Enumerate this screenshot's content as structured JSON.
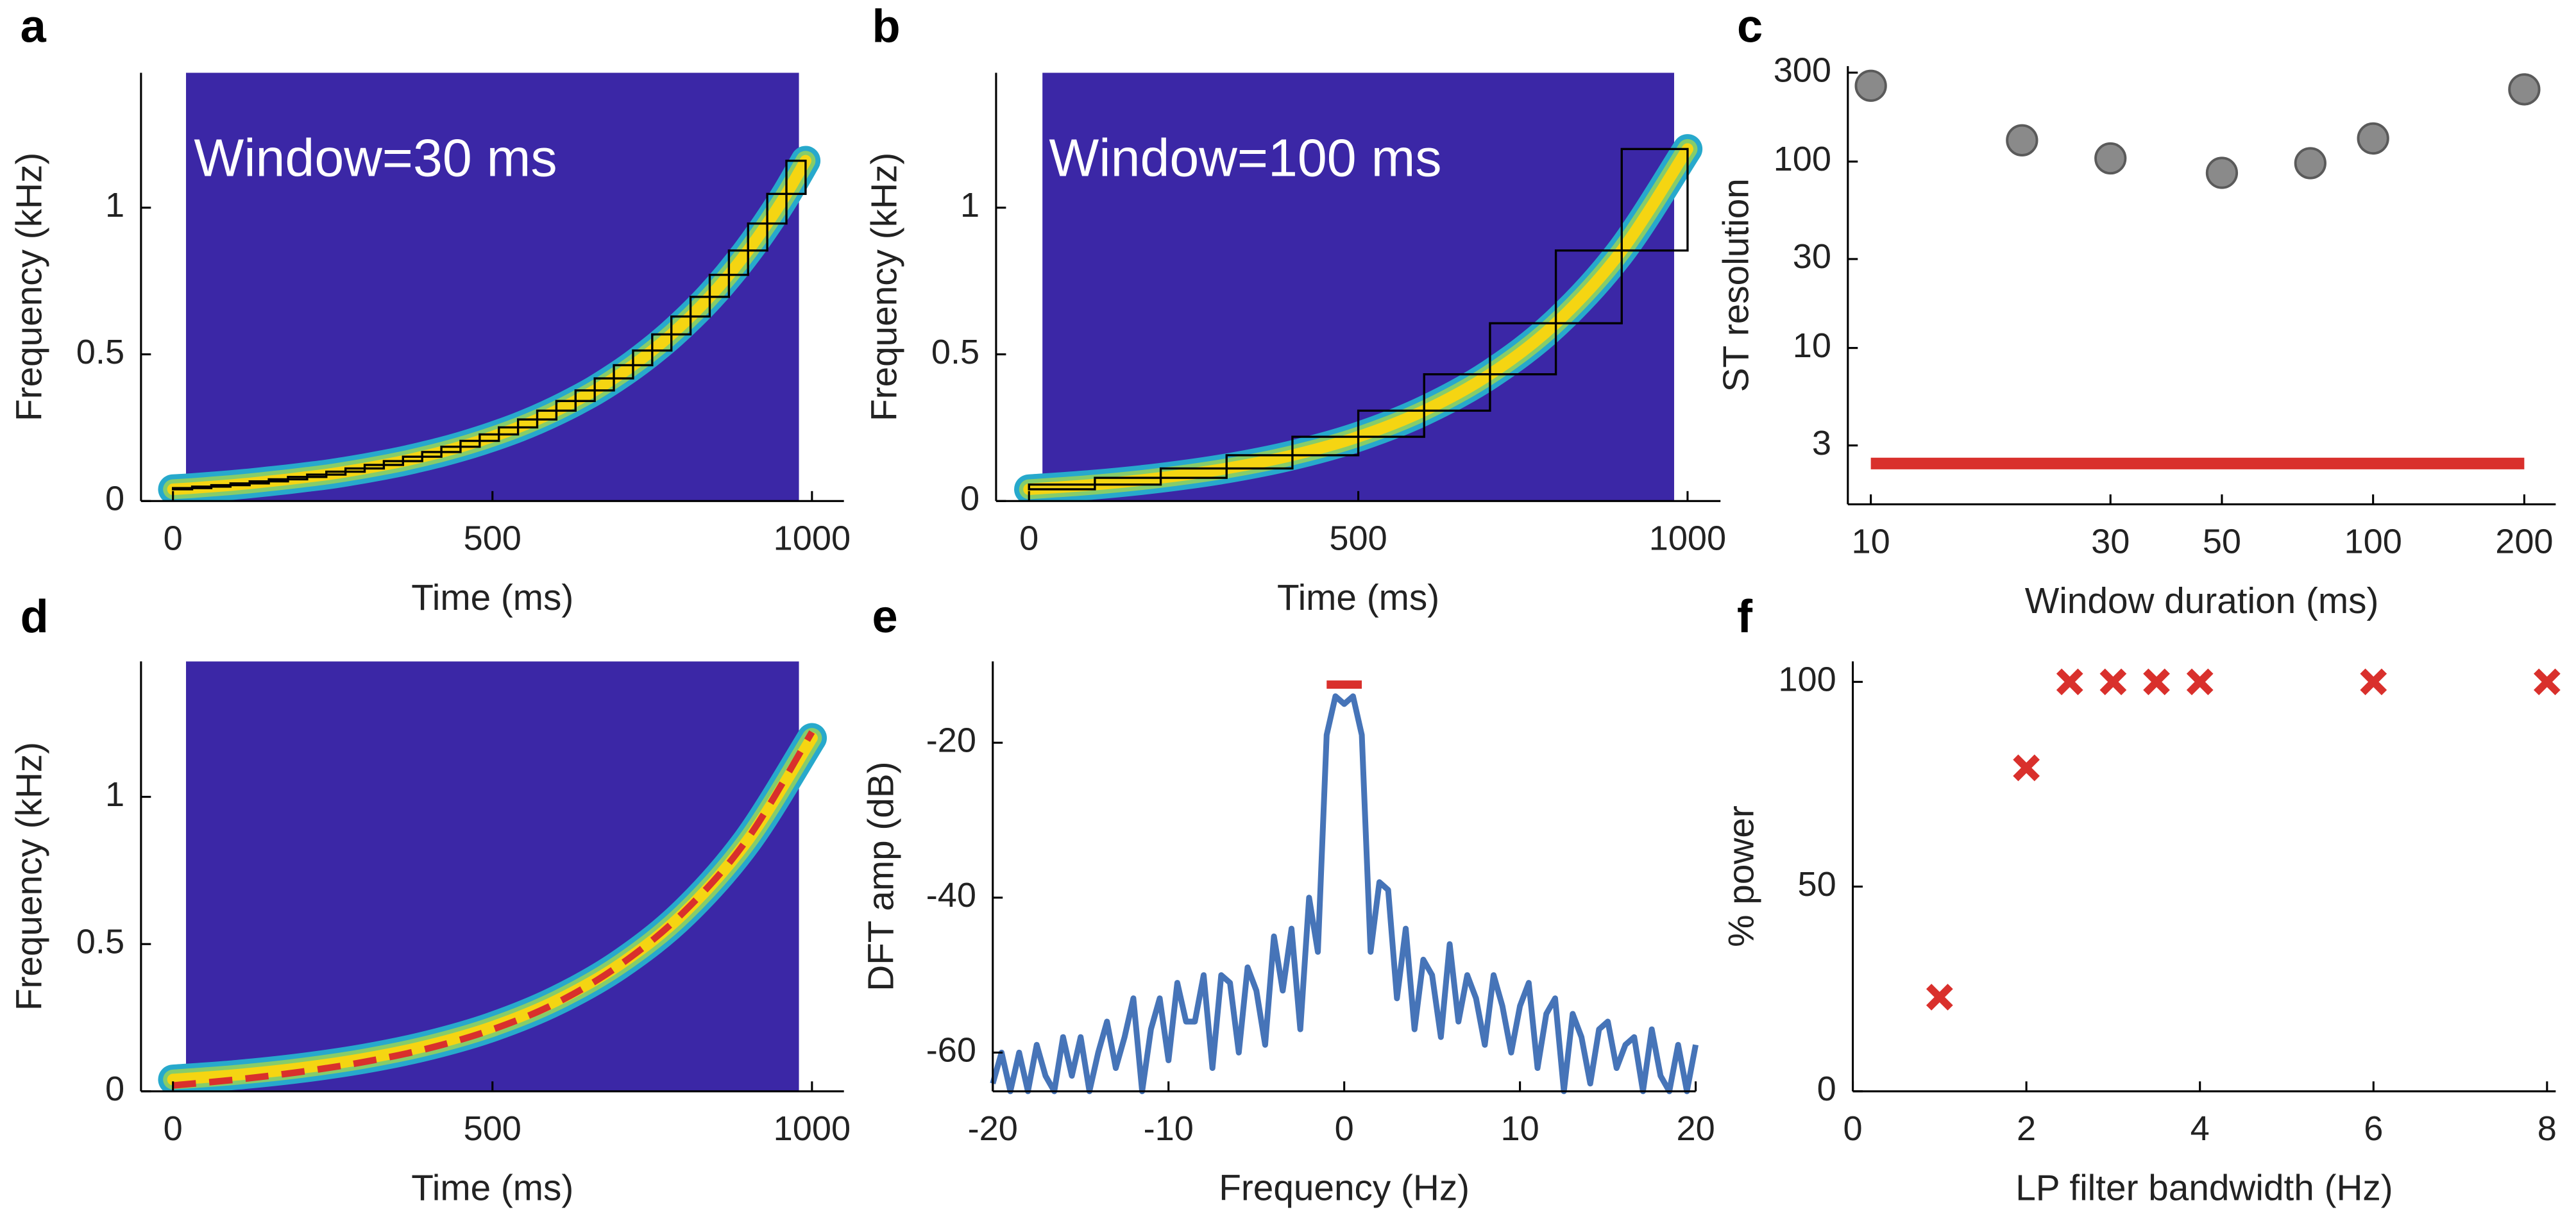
{
  "chart_data": [
    {
      "type": "spectrogram",
      "label": "a",
      "annotation": "Window=30 ms",
      "xlabel": "Time (ms)",
      "ylabel": "Frequency (kHz)",
      "xlim": [
        -50,
        1050
      ],
      "ylim": [
        0,
        1.46
      ],
      "xticks": [
        0,
        500,
        1000
      ],
      "yticks": [
        0,
        0.5,
        1
      ],
      "background": "#3b27a6",
      "series": [
        {
          "type": "band",
          "colors": [
            "#27a9cc",
            "#86cc6a",
            "#f5d512"
          ],
          "x": [
            0,
            30,
            60,
            90,
            120,
            150,
            180,
            210,
            240,
            270,
            300,
            330,
            360,
            390,
            420,
            450,
            480,
            510,
            540,
            570,
            600,
            630,
            660,
            690,
            720,
            750,
            780,
            810,
            840,
            870,
            900,
            930,
            960,
            990
          ],
          "values": [
            0.04,
            0.044,
            0.049,
            0.054,
            0.06,
            0.067,
            0.074,
            0.082,
            0.09,
            0.1,
            0.111,
            0.123,
            0.136,
            0.151,
            0.167,
            0.185,
            0.205,
            0.227,
            0.251,
            0.278,
            0.308,
            0.341,
            0.377,
            0.418,
            0.463,
            0.513,
            0.568,
            0.629,
            0.696,
            0.771,
            0.854,
            0.946,
            1.047,
            1.16
          ]
        },
        {
          "type": "boxes",
          "color": "#000000",
          "x": [
            0,
            30,
            60,
            90,
            120,
            150,
            180,
            210,
            240,
            270,
            300,
            330,
            360,
            390,
            420,
            450,
            480,
            510,
            540,
            570,
            600,
            630,
            660,
            690,
            720,
            750,
            780,
            810,
            840,
            870,
            900,
            930,
            960,
            990
          ],
          "values": [
            0.04,
            0.044,
            0.049,
            0.054,
            0.06,
            0.067,
            0.074,
            0.082,
            0.09,
            0.1,
            0.111,
            0.123,
            0.136,
            0.151,
            0.167,
            0.185,
            0.205,
            0.227,
            0.251,
            0.278,
            0.308,
            0.341,
            0.377,
            0.418,
            0.463,
            0.513,
            0.568,
            0.629,
            0.696,
            0.771,
            0.854,
            0.946,
            1.047,
            1.16
          ]
        }
      ]
    },
    {
      "type": "spectrogram",
      "label": "b",
      "annotation": "Window=100 ms",
      "xlabel": "Time (ms)",
      "ylabel": "Frequency (kHz)",
      "xlim": [
        -50,
        1050
      ],
      "ylim": [
        0,
        1.46
      ],
      "xticks": [
        0,
        500,
        1000
      ],
      "yticks": [
        0,
        0.5,
        1
      ],
      "background": "#3b27a6",
      "series": [
        {
          "type": "band",
          "colors": [
            "#27a9cc",
            "#86cc6a",
            "#f5d512"
          ],
          "x": [
            0,
            100,
            200,
            300,
            400,
            500,
            600,
            700,
            800,
            900,
            1000
          ],
          "values": [
            0.04,
            0.056,
            0.079,
            0.111,
            0.156,
            0.219,
            0.308,
            0.432,
            0.606,
            0.854,
            1.2
          ]
        },
        {
          "type": "boxes",
          "color": "#000000",
          "x": [
            0,
            100,
            200,
            300,
            400,
            500,
            600,
            700,
            800,
            900,
            1000
          ],
          "values": [
            0.04,
            0.056,
            0.079,
            0.111,
            0.156,
            0.219,
            0.308,
            0.432,
            0.606,
            0.854,
            1.2
          ]
        }
      ]
    },
    {
      "type": "xy",
      "label": "c",
      "xlabel": "Window duration (ms)",
      "ylabel": "ST resolution",
      "xlog": true,
      "ylog": true,
      "xlim": [
        9,
        231
      ],
      "ylim": [
        1.45,
        325
      ],
      "xticks": [
        10,
        30,
        50,
        100,
        200
      ],
      "yticks": [
        3,
        10,
        30,
        100,
        300
      ],
      "series": [
        {
          "type": "line",
          "color": "#d9302c",
          "width": 7,
          "x": [
            10,
            200
          ],
          "values": [
            2.4,
            2.4
          ]
        },
        {
          "type": "circle",
          "color": "#8a8a8a",
          "edge": "#5a5a5a",
          "x": [
            10,
            20,
            30,
            50,
            75,
            100,
            200
          ],
          "values": [
            255,
            130,
            104,
            87,
            98,
            133,
            244
          ]
        }
      ]
    },
    {
      "type": "spectrogram",
      "label": "d",
      "xlabel": "Time (ms)",
      "ylabel": "Frequency (kHz)",
      "xlim": [
        -50,
        1050
      ],
      "ylim": [
        0,
        1.46
      ],
      "xticks": [
        0,
        500,
        1000
      ],
      "yticks": [
        0,
        0.5,
        1
      ],
      "background": "#3b27a6",
      "series": [
        {
          "type": "band",
          "colors": [
            "#27a9cc",
            "#86cc6a",
            "#f5d512"
          ],
          "x": [
            0,
            100,
            200,
            300,
            400,
            500,
            600,
            700,
            800,
            900,
            1000
          ],
          "values": [
            0.04,
            0.056,
            0.079,
            0.111,
            0.156,
            0.219,
            0.308,
            0.432,
            0.606,
            0.854,
            1.2
          ]
        },
        {
          "type": "dashed",
          "color": "#d9302c",
          "x": [
            0,
            100,
            200,
            300,
            400,
            500,
            600,
            700,
            800,
            900,
            1000
          ],
          "values": [
            0.02,
            0.04,
            0.066,
            0.1,
            0.146,
            0.21,
            0.3,
            0.43,
            0.61,
            0.86,
            1.22
          ]
        }
      ]
    },
    {
      "type": "xy",
      "label": "e",
      "xlabel": "Frequency (Hz)",
      "ylabel": "DFT amp (dB)",
      "xlim": [
        -20,
        20
      ],
      "ylim": [
        -65,
        -9.5
      ],
      "xticks": [
        -20,
        -10,
        0,
        10,
        20
      ],
      "yticks": [
        -60,
        -40,
        -20
      ],
      "series": [
        {
          "type": "line",
          "color": "#4674b8",
          "width": 3.5,
          "x": [
            -20,
            -19.5,
            -19,
            -18.5,
            -18,
            -17.5,
            -17,
            -16.5,
            -16,
            -15.5,
            -15,
            -14.5,
            -14,
            -13.5,
            -13,
            -12.5,
            -12,
            -11.5,
            -11,
            -10.5,
            -10,
            -9.5,
            -9,
            -8.5,
            -8,
            -7.5,
            -7,
            -6.5,
            -6,
            -5.5,
            -5,
            -4.5,
            -4,
            -3.5,
            -3,
            -2.5,
            -2,
            -1.5,
            -1,
            -0.5,
            0,
            0.5,
            1,
            1.5,
            2,
            2.5,
            3,
            3.5,
            4,
            4.5,
            5,
            5.5,
            6,
            6.5,
            7,
            7.5,
            8,
            8.5,
            9,
            9.5,
            10,
            10.5,
            11,
            11.5,
            12,
            12.5,
            13,
            13.5,
            14,
            14.5,
            15,
            15.5,
            16,
            16.5,
            17,
            17.5,
            18,
            18.5,
            19,
            19.5,
            20
          ],
          "values": [
            -64,
            -60,
            -65,
            -60,
            -65,
            -59,
            -63,
            -65,
            -58,
            -63,
            -58,
            -65,
            -60,
            -56,
            -62,
            -58,
            -53,
            -65,
            -57,
            -53,
            -61,
            -51,
            -56,
            -56,
            -50,
            -62,
            -50,
            -51,
            -60,
            -49,
            -52,
            -59,
            -45,
            -52,
            -44,
            -57,
            -40,
            -47,
            -19,
            -14,
            -15,
            -14,
            -19,
            -47,
            -38,
            -39,
            -53,
            -44,
            -57,
            -48,
            -50,
            -58,
            -46,
            -56,
            -50,
            -53,
            -59,
            -50,
            -54,
            -60,
            -54,
            -51,
            -62,
            -55,
            -53,
            -65,
            -55,
            -58,
            -64,
            -57,
            -56,
            -62,
            -59,
            -58,
            -65,
            -57,
            -63,
            -65,
            -59,
            -65,
            -59
          ]
        },
        {
          "type": "line",
          "color": "#d9302c",
          "width": 5,
          "x": [
            -1,
            1
          ],
          "values": [
            -12.5,
            -12.5
          ]
        }
      ]
    },
    {
      "type": "xy",
      "label": "f",
      "xlabel": "LP filter bandwidth (Hz)",
      "ylabel": "% power",
      "xlim": [
        0,
        8.1
      ],
      "ylim": [
        0,
        105
      ],
      "xticks": [
        0,
        2,
        4,
        6,
        8
      ],
      "yticks": [
        0,
        50,
        100
      ],
      "series": [
        {
          "type": "cross",
          "color": "#d9302c",
          "x": [
            1,
            2,
            2.5,
            3,
            3.5,
            4,
            6,
            8
          ],
          "values": [
            23,
            79,
            100,
            100,
            100,
            100,
            100,
            100
          ]
        }
      ]
    }
  ]
}
